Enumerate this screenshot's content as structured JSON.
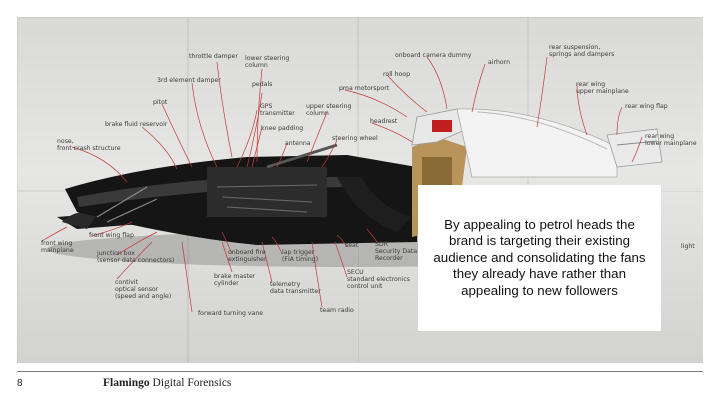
{
  "callout_text": "By appealing to petrol heads the brand is targeting their existing audience and consolidating the fans they already have rather than appealing to new followers",
  "footer": {
    "page_number": "8",
    "brand_name": "Flamingo",
    "brand_suffix": "Digital Forensics"
  },
  "labels": {
    "throttle_damper": "throttle damper",
    "lower_steering_column": "lower steering\ncolumn",
    "third_element_damper": "3rd element damper",
    "pedals": "pedals",
    "pitot": "pitot",
    "gps_transmitter": "GPS\ntransmitter",
    "upper_steering_column": "upper steering\ncolumn",
    "brake_fluid_reservoir": "brake fluid reservoir",
    "knee_padding": "knee padding",
    "nose_front_crash": "nose,\nfront crash structure",
    "antenna": "antenna",
    "steering_wheel": "steering wheel",
    "pma_motorsport": "pma motorsport",
    "roll_hoop": "roll hoop",
    "onboard_camera_dummy": "onboard camera dummy",
    "airhorn": "airhorn",
    "headrest": "headrest",
    "rear_suspension": "rear suspension,\nsprings and dampers",
    "rear_wing_upper": "rear wing\nupper mainplane",
    "rear_wing_flap": "rear wing flap",
    "rear_wing_lower": "rear wing\nlower mainplane",
    "front_wing_mainplane": "front wing\nmainplane",
    "front_wing_flap": "front wing flap",
    "junction_box": "junction box\n(sensor data connectors)",
    "onboard_fire": "onboard fire\nextinguisher",
    "lap_trigger": "lap trigger\n(FIA timing)",
    "seat": "seat",
    "sdr": "SDR\nSecurity Data\nRecorder",
    "conti": "contivit\noptical sensor\n(speed and angle)",
    "brake_master": "brake master\ncylinder",
    "telemetry": "telemetry\ndata transmitter",
    "secu": "SECU\nstandard electronics\ncontrol unit",
    "team_radio": "team radio",
    "forward_turning_vane": "forward turning vane",
    "light": "light"
  }
}
